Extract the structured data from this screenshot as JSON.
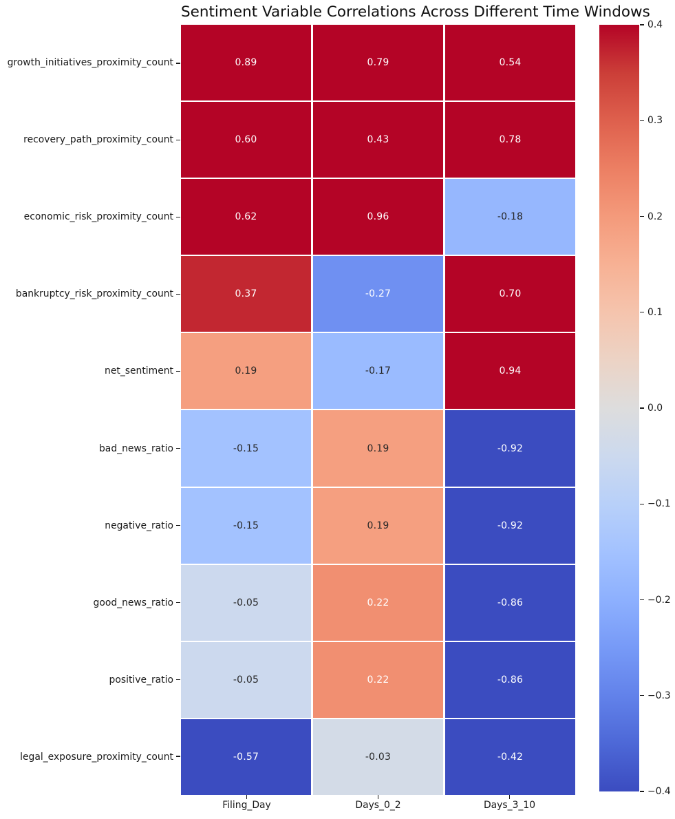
{
  "chart_data": {
    "type": "heatmap",
    "title": "Sentiment Variable Correlations Across Different Time Windows",
    "columns": [
      "Filing_Day",
      "Days_0_2",
      "Days_3_10"
    ],
    "rows": [
      "growth_initiatives_proximity_count",
      "recovery_path_proximity_count",
      "economic_risk_proximity_count",
      "bankruptcy_risk_proximity_count",
      "net_sentiment",
      "bad_news_ratio",
      "negative_ratio",
      "good_news_ratio",
      "positive_ratio",
      "legal_exposure_proximity_count"
    ],
    "values": [
      [
        0.89,
        0.79,
        0.54
      ],
      [
        0.6,
        0.43,
        0.78
      ],
      [
        0.62,
        0.96,
        -0.18
      ],
      [
        0.37,
        -0.27,
        0.7
      ],
      [
        0.19,
        -0.17,
        0.94
      ],
      [
        -0.15,
        0.19,
        -0.92
      ],
      [
        -0.15,
        0.19,
        -0.92
      ],
      [
        -0.05,
        0.22,
        -0.86
      ],
      [
        -0.05,
        0.22,
        -0.86
      ],
      [
        -0.57,
        -0.03,
        -0.42
      ]
    ],
    "vmin": -0.4,
    "vmax": 0.4,
    "colormap": "coolwarm",
    "colormap_stops": [
      [
        0.0,
        "#3B4CC0"
      ],
      [
        0.0625,
        "#4D68D7"
      ],
      [
        0.125,
        "#6282EA"
      ],
      [
        0.1875,
        "#779AF7"
      ],
      [
        0.25,
        "#8DB0FE"
      ],
      [
        0.3125,
        "#A3C2FF"
      ],
      [
        0.375,
        "#B8D0F9"
      ],
      [
        0.4375,
        "#CCD9EE"
      ],
      [
        0.5,
        "#DDDDDD"
      ],
      [
        0.5625,
        "#ECD3C5"
      ],
      [
        0.625,
        "#F5C4AD"
      ],
      [
        0.6875,
        "#F7B194"
      ],
      [
        0.75,
        "#F49A7B"
      ],
      [
        0.8125,
        "#EC7F63"
      ],
      [
        0.875,
        "#DE604D"
      ],
      [
        0.9375,
        "#CB3E38"
      ],
      [
        1.0,
        "#B40426"
      ]
    ],
    "colorbar_ticks": [
      {
        "label": "0.4",
        "value": 0.4
      },
      {
        "label": "0.3",
        "value": 0.3
      },
      {
        "label": "0.2",
        "value": 0.2
      },
      {
        "label": "0.1",
        "value": 0.1
      },
      {
        "label": "0.0",
        "value": 0.0
      },
      {
        "label": "−0.1",
        "value": -0.1
      },
      {
        "label": "−0.2",
        "value": -0.2
      },
      {
        "label": "−0.3",
        "value": -0.3
      },
      {
        "label": "−0.4",
        "value": -0.4
      }
    ],
    "annotation_decimals": 2,
    "annotation_colors": {
      "on_dark": "#FFFFFF",
      "on_light": "#262626"
    },
    "grid_line_color": "#FFFFFF",
    "legend_position": "right",
    "grid": false
  }
}
